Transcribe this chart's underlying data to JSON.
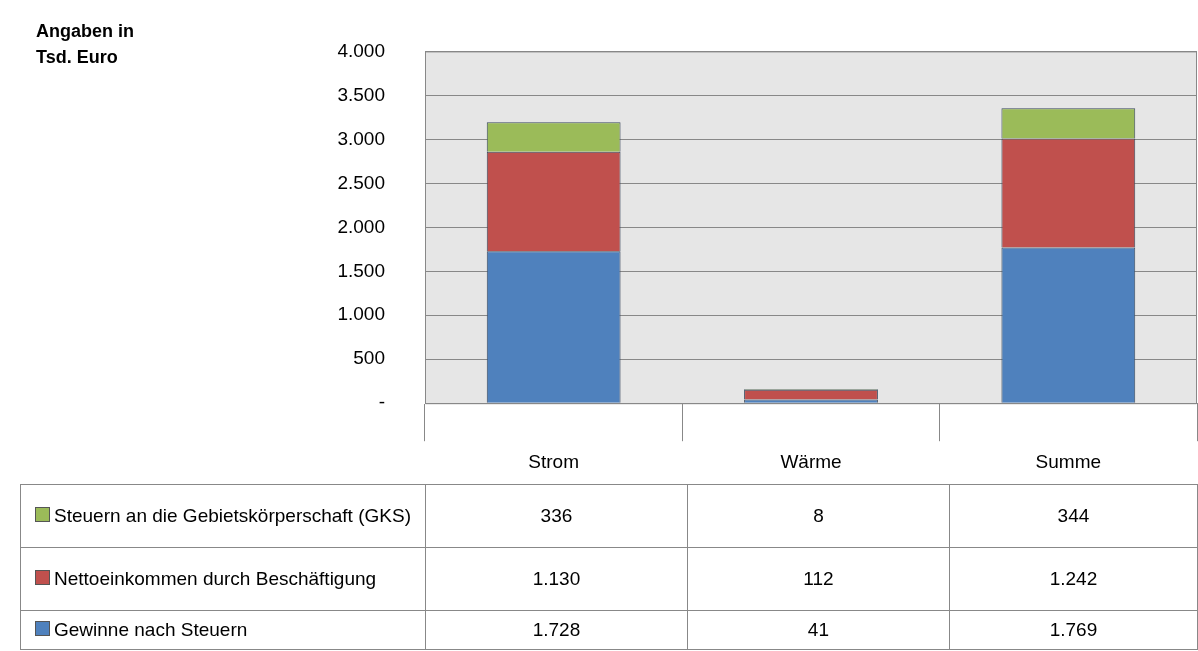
{
  "chart_data": {
    "type": "bar",
    "annotations": [
      "Angaben in Tsd. Euro"
    ],
    "categories": [
      "Strom",
      "Wärme",
      "Summe"
    ],
    "stacked": true,
    "series": [
      {
        "name": "Gewinne nach Steuern",
        "color": "#4f81bd",
        "values": [
          1728,
          41,
          1769
        ],
        "value_labels": [
          "1.728",
          "41",
          "1.769"
        ]
      },
      {
        "name": "Nettoeinkommen durch Beschäftigung",
        "color": "#c0504d",
        "values": [
          1130,
          112,
          1242
        ],
        "value_labels": [
          "1.130",
          "112",
          "1.242"
        ]
      },
      {
        "name": "Steuern an die Gebietskörperschaft (GKS)",
        "color": "#9bbb59",
        "values": [
          336,
          8,
          344
        ],
        "value_labels": [
          "336",
          "8",
          "344"
        ]
      }
    ],
    "ylim": [
      0,
      4000
    ],
    "yticks": [
      {
        "value": 0,
        "label": "-"
      },
      500,
      {
        "value": 1000,
        "label": "1.000"
      },
      {
        "value": 1500,
        "label": "1.500"
      },
      {
        "value": 2000,
        "label": "2.000"
      },
      {
        "value": 2500,
        "label": "2.500"
      },
      {
        "value": 3000,
        "label": "3.000"
      },
      {
        "value": 3500,
        "label": "3.500"
      },
      {
        "value": 4000,
        "label": "4.000"
      }
    ],
    "grid": "y",
    "legend": "bottom"
  }
}
